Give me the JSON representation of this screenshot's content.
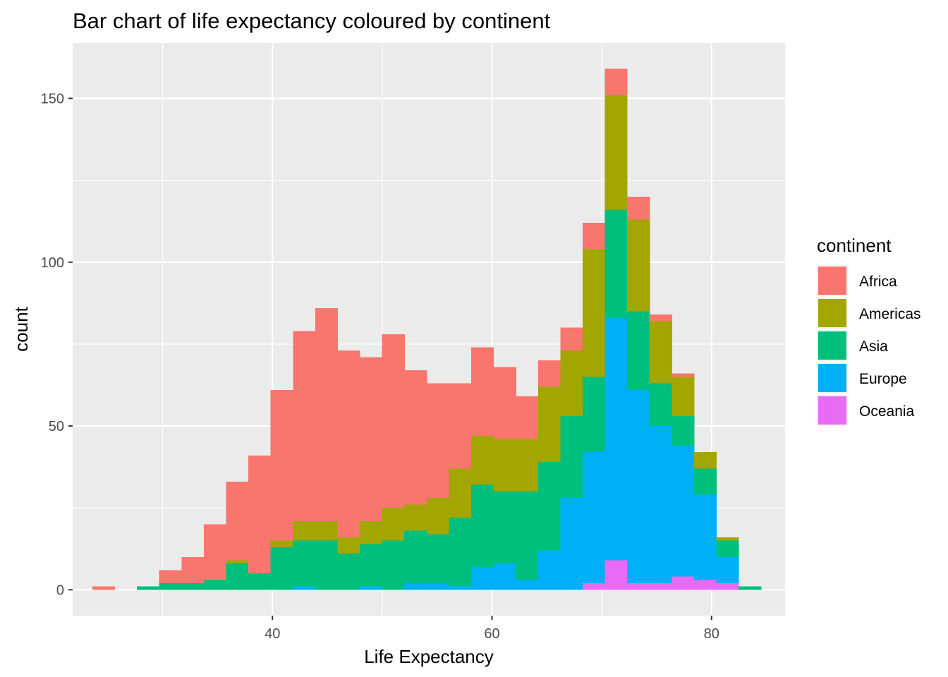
{
  "chart_data": {
    "type": "bar",
    "stacked": true,
    "title": "Bar chart of life expectancy coloured by continent",
    "xlabel": "Life Expectancy",
    "ylabel": "count",
    "xlim": [
      21.8,
      86.7
    ],
    "ylim": [
      -7.9,
      166.9
    ],
    "bin_width": 2.03,
    "x_ticks": [
      40,
      60,
      80
    ],
    "y_ticks": [
      0,
      50,
      100,
      150
    ],
    "x_tick_labels": [
      "40",
      "60",
      "80"
    ],
    "y_tick_labels": [
      "0",
      "50",
      "100",
      "150"
    ],
    "grid": true,
    "legend": {
      "title": "continent",
      "placement": "right",
      "entries": [
        "Africa",
        "Americas",
        "Asia",
        "Europe",
        "Oceania"
      ]
    },
    "colors": {
      "Africa": "#F8766D",
      "Americas": "#A3A500",
      "Asia": "#00BF7D",
      "Europe": "#00B0F6",
      "Oceania": "#E76BF3"
    },
    "bin_centers": [
      24.61,
      26.64,
      28.67,
      30.7,
      32.73,
      34.76,
      36.79,
      38.82,
      40.85,
      42.88,
      44.91,
      46.94,
      48.97,
      51.0,
      53.03,
      55.06,
      57.09,
      59.12,
      61.15,
      63.18,
      65.21,
      67.24,
      69.27,
      71.3,
      73.33,
      75.36,
      77.39,
      79.42,
      81.45,
      83.48
    ],
    "series": [
      {
        "name": "Oceania",
        "values": [
          0,
          0,
          0,
          0,
          0,
          0,
          0,
          0,
          0,
          0,
          0,
          0,
          0,
          0,
          0,
          0,
          0,
          0,
          0,
          0,
          0,
          0,
          2,
          9,
          2,
          2,
          4,
          3,
          2,
          0
        ]
      },
      {
        "name": "Europe",
        "values": [
          0,
          0,
          0,
          0,
          0,
          0,
          0,
          0,
          0,
          1,
          0,
          0,
          1,
          0,
          2,
          2,
          1,
          7,
          8,
          3,
          12,
          28,
          40,
          74,
          59,
          48,
          40,
          26,
          8,
          0
        ]
      },
      {
        "name": "Asia",
        "values": [
          0,
          0,
          1,
          2,
          2,
          3,
          8,
          5,
          13,
          14,
          15,
          11,
          13,
          15,
          16,
          15,
          21,
          25,
          22,
          27,
          27,
          25,
          23,
          33,
          24,
          13,
          9,
          8,
          5,
          1
        ]
      },
      {
        "name": "Americas",
        "values": [
          0,
          0,
          0,
          0,
          0,
          0,
          1,
          0,
          2,
          6,
          6,
          5,
          7,
          10,
          8,
          11,
          15,
          15,
          16,
          16,
          23,
          20,
          39,
          35,
          28,
          19,
          12,
          5,
          1,
          0
        ]
      },
      {
        "name": "Africa",
        "values": [
          1,
          0,
          0,
          4,
          8,
          17,
          24,
          36,
          46,
          58,
          65,
          57,
          50,
          53,
          41,
          35,
          26,
          27,
          22,
          13,
          8,
          7,
          8,
          8,
          7,
          2,
          1,
          0,
          0,
          0
        ]
      }
    ]
  }
}
